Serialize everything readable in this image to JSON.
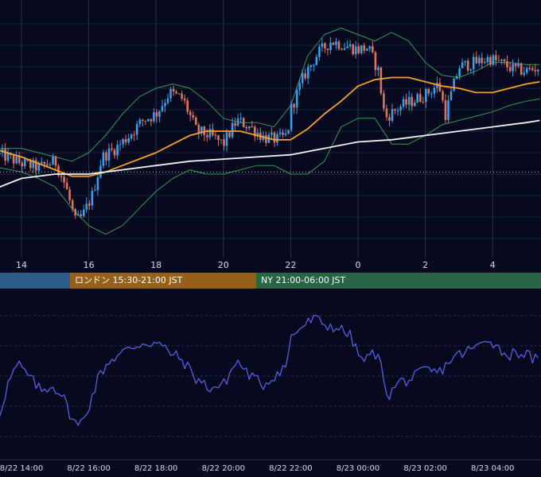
{
  "colors": {
    "background": "#070a1f",
    "grid": "#1b2140",
    "candle_up": "#3a9ee8",
    "candle_down": "#e0735e",
    "bollinger": "#2f9a55",
    "ma_orange": "#f4a030",
    "ma_white": "#f0f0f0",
    "reference_line": "#c8c8d0",
    "oscillator": "#5560e0",
    "session_tokyo": "#2f5a8a",
    "session_london": "#94601c",
    "session_ny": "#286445"
  },
  "time_axis_labels": [
    "14",
    "16",
    "18",
    "20",
    "22",
    "0",
    "2",
    "4"
  ],
  "sessions": [
    {
      "label": "",
      "key": "tokyo"
    },
    {
      "label": "ロンドン 15:30-21:00 JST",
      "key": "london"
    },
    {
      "label": "NY 21:00-06:00 JST",
      "key": "ny"
    }
  ],
  "bottom_axis_labels": [
    "8/22 14:00",
    "8/22 16:00",
    "8/22 18:00",
    "8/22 20:00",
    "8/22 22:00",
    "8/23 00:00",
    "8/23 02:00",
    "8/23 04:00"
  ],
  "chart_data": [
    {
      "type": "candlestick",
      "x_start_hour": 13.35,
      "x_end_hour": 29.4,
      "ylim": [
        0,
        100
      ],
      "reference_level": 31,
      "grid": true,
      "close_anchors": [
        [
          13.4,
          39
        ],
        [
          14.0,
          35
        ],
        [
          14.5,
          33
        ],
        [
          15.0,
          36
        ],
        [
          15.3,
          25
        ],
        [
          15.6,
          8
        ],
        [
          15.8,
          10
        ],
        [
          16.1,
          20
        ],
        [
          16.4,
          38
        ],
        [
          16.8,
          42
        ],
        [
          17.2,
          48
        ],
        [
          17.6,
          55
        ],
        [
          18.0,
          58
        ],
        [
          18.4,
          68
        ],
        [
          18.8,
          65
        ],
        [
          19.2,
          50
        ],
        [
          19.6,
          48
        ],
        [
          20.0,
          44
        ],
        [
          20.4,
          55
        ],
        [
          20.8,
          52
        ],
        [
          21.2,
          47
        ],
        [
          21.6,
          46
        ],
        [
          21.9,
          48
        ],
        [
          22.0,
          60
        ],
        [
          22.4,
          76
        ],
        [
          22.8,
          86
        ],
        [
          23.2,
          92
        ],
        [
          23.6,
          90
        ],
        [
          24.0,
          88
        ],
        [
          24.3,
          89
        ],
        [
          24.6,
          78
        ],
        [
          24.8,
          56
        ],
        [
          25.2,
          61
        ],
        [
          25.6,
          64
        ],
        [
          26.0,
          67
        ],
        [
          26.4,
          72
        ],
        [
          26.6,
          58
        ],
        [
          27.0,
          80
        ],
        [
          27.5,
          82
        ],
        [
          27.9,
          84
        ],
        [
          28.2,
          82
        ],
        [
          28.6,
          79
        ],
        [
          29.0,
          78
        ],
        [
          29.4,
          80
        ]
      ],
      "ma_orange": [
        [
          13.35,
          41
        ],
        [
          14.0,
          38
        ],
        [
          14.5,
          35
        ],
        [
          15.0,
          32
        ],
        [
          15.5,
          29
        ],
        [
          16.0,
          29
        ],
        [
          16.5,
          31
        ],
        [
          17.0,
          34
        ],
        [
          17.5,
          37
        ],
        [
          18.0,
          40
        ],
        [
          18.5,
          44
        ],
        [
          19.0,
          48
        ],
        [
          19.5,
          50
        ],
        [
          20.0,
          50
        ],
        [
          20.5,
          50
        ],
        [
          21.0,
          48
        ],
        [
          21.5,
          46
        ],
        [
          22.0,
          46
        ],
        [
          22.5,
          51
        ],
        [
          23.0,
          58
        ],
        [
          23.5,
          64
        ],
        [
          24.0,
          71
        ],
        [
          24.5,
          74
        ],
        [
          25.0,
          75
        ],
        [
          25.5,
          75
        ],
        [
          26.0,
          73
        ],
        [
          26.5,
          71
        ],
        [
          27.0,
          70
        ],
        [
          27.5,
          68
        ],
        [
          28.0,
          68
        ],
        [
          28.5,
          70
        ],
        [
          29.0,
          72
        ],
        [
          29.4,
          73
        ]
      ],
      "ma_white": [
        [
          13.35,
          24
        ],
        [
          14.0,
          28
        ],
        [
          15.0,
          30
        ],
        [
          16.0,
          30
        ],
        [
          17.0,
          32
        ],
        [
          18.0,
          34
        ],
        [
          19.0,
          36
        ],
        [
          20.0,
          37
        ],
        [
          21.0,
          38
        ],
        [
          22.0,
          39
        ],
        [
          23.0,
          42
        ],
        [
          24.0,
          45
        ],
        [
          25.0,
          46
        ],
        [
          26.0,
          48
        ],
        [
          27.0,
          50
        ],
        [
          28.0,
          52
        ],
        [
          29.0,
          54
        ],
        [
          29.4,
          55
        ]
      ],
      "bollinger_upper": [
        [
          13.35,
          42
        ],
        [
          14.0,
          42
        ],
        [
          14.5,
          40
        ],
        [
          15.0,
          38
        ],
        [
          15.5,
          36
        ],
        [
          16.0,
          40
        ],
        [
          16.5,
          48
        ],
        [
          17.0,
          58
        ],
        [
          17.5,
          66
        ],
        [
          18.0,
          70
        ],
        [
          18.5,
          72
        ],
        [
          19.0,
          70
        ],
        [
          19.5,
          64
        ],
        [
          20.0,
          56
        ],
        [
          20.5,
          54
        ],
        [
          21.0,
          54
        ],
        [
          21.5,
          52
        ],
        [
          22.0,
          62
        ],
        [
          22.5,
          85
        ],
        [
          23.0,
          95
        ],
        [
          23.5,
          98
        ],
        [
          24.0,
          95
        ],
        [
          24.5,
          92
        ],
        [
          25.0,
          96
        ],
        [
          25.5,
          92
        ],
        [
          26.0,
          82
        ],
        [
          26.5,
          76
        ],
        [
          27.0,
          75
        ],
        [
          27.5,
          78
        ],
        [
          28.0,
          82
        ],
        [
          28.5,
          82
        ],
        [
          29.0,
          81
        ],
        [
          29.4,
          81
        ]
      ],
      "bollinger_lower": [
        [
          13.35,
          33
        ],
        [
          14.0,
          31
        ],
        [
          14.5,
          28
        ],
        [
          15.0,
          24
        ],
        [
          15.5,
          14
        ],
        [
          16.0,
          6
        ],
        [
          16.5,
          2
        ],
        [
          17.0,
          6
        ],
        [
          17.5,
          14
        ],
        [
          18.0,
          22
        ],
        [
          18.5,
          28
        ],
        [
          19.0,
          32
        ],
        [
          19.5,
          30
        ],
        [
          20.0,
          30
        ],
        [
          20.5,
          32
        ],
        [
          21.0,
          34
        ],
        [
          21.5,
          34
        ],
        [
          22.0,
          30
        ],
        [
          22.5,
          30
        ],
        [
          23.0,
          36
        ],
        [
          23.5,
          52
        ],
        [
          24.0,
          56
        ],
        [
          24.5,
          56
        ],
        [
          25.0,
          44
        ],
        [
          25.5,
          44
        ],
        [
          26.0,
          48
        ],
        [
          26.5,
          53
        ],
        [
          27.0,
          55
        ],
        [
          27.5,
          57
        ],
        [
          28.0,
          59
        ],
        [
          28.5,
          62
        ],
        [
          29.0,
          64
        ],
        [
          29.4,
          65
        ]
      ]
    },
    {
      "type": "line",
      "x_start_hour": 13.35,
      "x_end_hour": 29.4,
      "ylim": [
        0,
        100
      ],
      "grid": true,
      "values": [
        [
          13.35,
          25
        ],
        [
          13.6,
          45
        ],
        [
          13.9,
          58
        ],
        [
          14.2,
          50
        ],
        [
          14.6,
          40
        ],
        [
          14.9,
          44
        ],
        [
          15.2,
          38
        ],
        [
          15.5,
          22
        ],
        [
          15.7,
          16
        ],
        [
          16.0,
          30
        ],
        [
          16.3,
          50
        ],
        [
          16.6,
          60
        ],
        [
          16.9,
          64
        ],
        [
          17.2,
          68
        ],
        [
          17.6,
          72
        ],
        [
          18.0,
          72
        ],
        [
          18.4,
          66
        ],
        [
          18.8,
          60
        ],
        [
          19.2,
          48
        ],
        [
          19.6,
          42
        ],
        [
          20.0,
          44
        ],
        [
          20.4,
          60
        ],
        [
          20.8,
          50
        ],
        [
          21.2,
          44
        ],
        [
          21.6,
          52
        ],
        [
          21.9,
          58
        ],
        [
          22.0,
          76
        ],
        [
          22.3,
          82
        ],
        [
          22.7,
          88
        ],
        [
          23.0,
          84
        ],
        [
          23.4,
          82
        ],
        [
          23.8,
          76
        ],
        [
          24.0,
          64
        ],
        [
          24.2,
          60
        ],
        [
          24.5,
          66
        ],
        [
          24.7,
          56
        ],
        [
          24.9,
          36
        ],
        [
          25.2,
          46
        ],
        [
          25.6,
          48
        ],
        [
          26.0,
          54
        ],
        [
          26.4,
          52
        ],
        [
          26.8,
          62
        ],
        [
          27.2,
          66
        ],
        [
          27.6,
          70
        ],
        [
          27.9,
          76
        ],
        [
          28.1,
          70
        ],
        [
          28.4,
          64
        ],
        [
          28.8,
          66
        ],
        [
          29.2,
          62
        ],
        [
          29.4,
          58
        ]
      ]
    }
  ]
}
